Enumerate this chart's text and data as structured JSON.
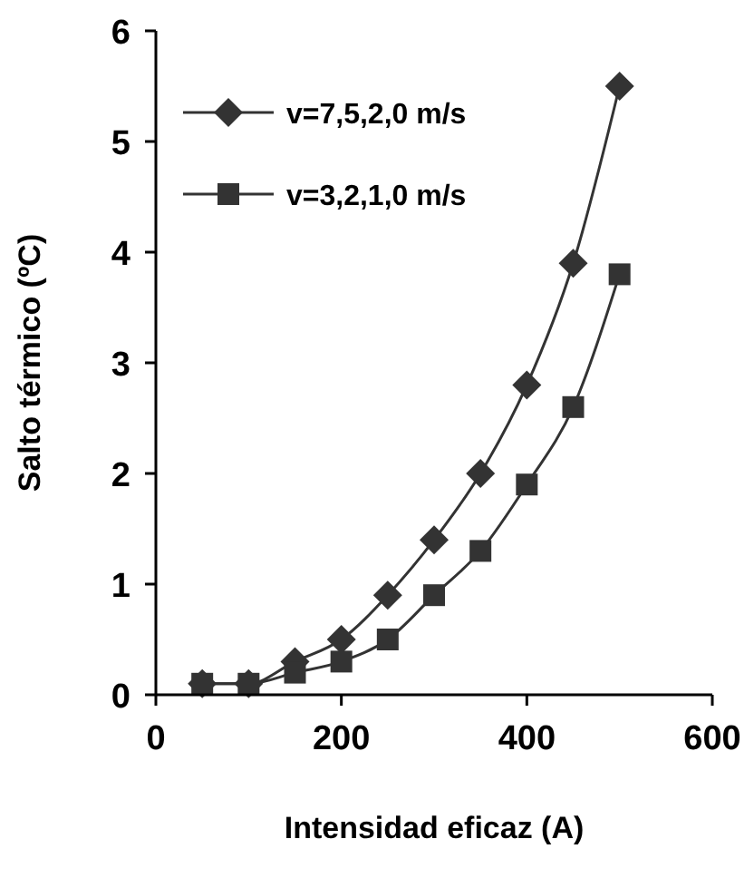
{
  "chart_data": {
    "type": "line",
    "xlabel": "Intensidad eficaz (A)",
    "ylabel": "Salto térmico (ºC)",
    "x": [
      50,
      100,
      150,
      200,
      250,
      300,
      350,
      400,
      450,
      500
    ],
    "series": [
      {
        "name": "v=7,5,2,0 m/s",
        "color": "#333333",
        "marker": "diamond",
        "values": [
          0.1,
          0.1,
          0.3,
          0.5,
          0.9,
          1.4,
          2.0,
          2.8,
          3.9,
          5.5
        ]
      },
      {
        "name": "v=3,2,1,0 m/s",
        "color": "#333333",
        "marker": "square",
        "values": [
          0.1,
          0.1,
          0.2,
          0.3,
          0.5,
          0.9,
          1.3,
          1.9,
          2.6,
          3.8
        ]
      }
    ],
    "xlim": [
      0,
      600
    ],
    "xticks": [
      0,
      200,
      400,
      600
    ],
    "ylim": [
      0,
      6
    ],
    "yticks": [
      0,
      1,
      2,
      3,
      4,
      5,
      6
    ],
    "grid": false,
    "legend": "top left",
    "line_style": "solid"
  }
}
